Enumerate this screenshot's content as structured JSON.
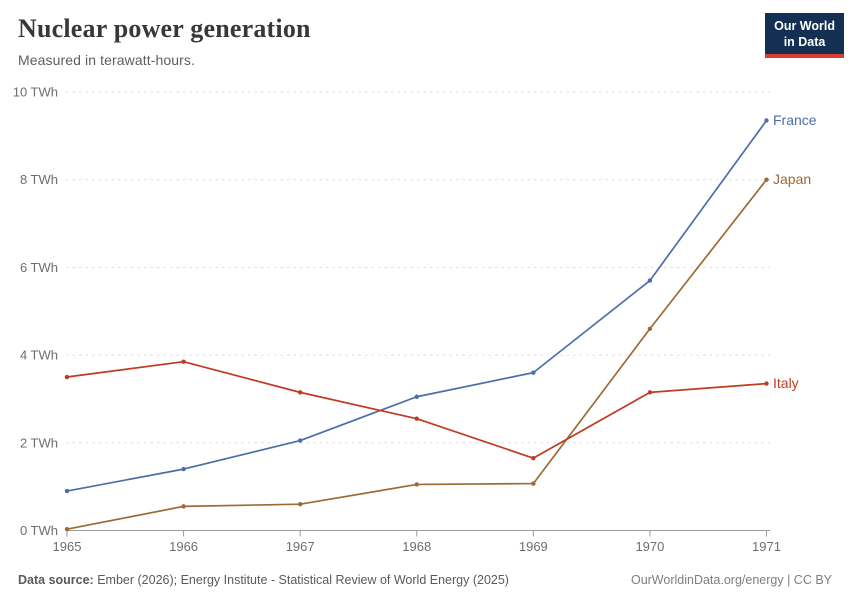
{
  "header": {
    "title": "Nuclear power generation",
    "subtitle": "Measured in terawatt-hours."
  },
  "logo": {
    "line1": "Our World",
    "line2": "in Data",
    "bg_color": "#132f52",
    "accent_color": "#dc3a34"
  },
  "footer": {
    "source_label": "Data source:",
    "source_text": " Ember (2026); Energy Institute - Statistical Review of World Energy (2025)",
    "link_text": "OurWorldinData.org/energy",
    "license_text": " | CC BY"
  },
  "chart_data": {
    "type": "line",
    "title": "Nuclear power generation",
    "subtitle": "Measured in terawatt-hours.",
    "x": [
      1965,
      1966,
      1967,
      1968,
      1969,
      1970,
      1971
    ],
    "x_labels": [
      "1965",
      "1966",
      "1967",
      "1968",
      "1969",
      "1970",
      "1971"
    ],
    "series": [
      {
        "name": "France",
        "color": "#4c6ea8",
        "values": [
          0.9,
          1.4,
          2.05,
          3.05,
          3.6,
          5.7,
          9.35
        ]
      },
      {
        "name": "Japan",
        "color": "#9d6a35",
        "values": [
          0.03,
          0.55,
          0.6,
          1.05,
          1.07,
          4.6,
          8.0
        ]
      },
      {
        "name": "Italy",
        "color": "#bf3b21",
        "values": [
          3.5,
          3.85,
          3.15,
          2.55,
          1.65,
          3.15,
          3.35
        ]
      }
    ],
    "unit": "TWh",
    "ylim": [
      0,
      10
    ],
    "yticks": [
      0,
      2,
      4,
      6,
      8,
      10
    ],
    "ytick_labels": [
      "0 TWh",
      "2 TWh",
      "4 TWh",
      "6 TWh",
      "8 TWh",
      "10 TWh"
    ],
    "grid": "horizontal-dashed",
    "legend": "end-of-line-labels",
    "grid_color": "#dddddd",
    "axis_color": "#9b9b9b",
    "tick_label_color": "#6e6e6e"
  }
}
